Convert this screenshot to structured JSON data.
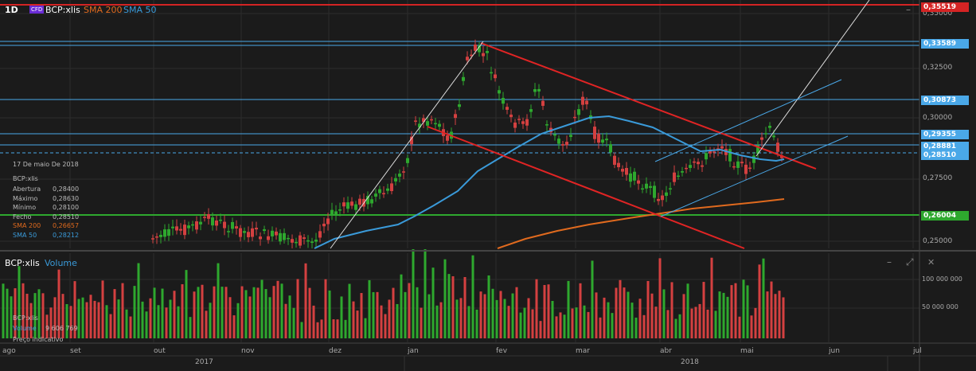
{
  "header": {
    "timeframe": "1D",
    "cfd_badge": "CFD",
    "symbol": "BCP:xlis",
    "sma200_label": "SMA 200",
    "sma50_label": "SMA 50",
    "close_symbol": "–",
    "colors": {
      "sma200": "#e06a1e",
      "sma50": "#3a9ad9",
      "cfd_bg": "#6a2cd6"
    }
  },
  "info_box": {
    "date": "17 De maio De 2018",
    "symbol": "BCP:xlis",
    "rows": [
      {
        "label": "Abertura",
        "value": "0,28400"
      },
      {
        "label": "Máximo",
        "value": "0,28630"
      },
      {
        "label": "Mínimo",
        "value": "0,28100"
      },
      {
        "label": "Fecho",
        "value": "0,28510"
      },
      {
        "label": "SMA 200",
        "value": "0,26657"
      },
      {
        "label": "SMA 50",
        "value": "0,28212"
      }
    ]
  },
  "price_axis": {
    "ticks": [
      "0,35000",
      "0,32500",
      "0,30000",
      "0,27500",
      "0,25000"
    ],
    "tags": [
      {
        "text": "0,35519",
        "bg": "#d42424",
        "fg": "#ffffff"
      },
      {
        "text": "0,33589",
        "bg": "#4aa8e8",
        "fg": "#ffffff"
      },
      {
        "text": "0,30873",
        "bg": "#4aa8e8",
        "fg": "#ffffff"
      },
      {
        "text": "0,29355",
        "bg": "#4aa8e8",
        "fg": "#ffffff"
      },
      {
        "text": "0,28881",
        "bg": "#4aa8e8",
        "fg": "#ffffff"
      },
      {
        "text": "0,28510",
        "bg": "#4aa8e8",
        "fg": "#ffffff"
      },
      {
        "text": "0,26004",
        "bg": "#2ea82e",
        "fg": "#ffffff"
      }
    ]
  },
  "volume_panel": {
    "symbol": "BCP:xlis",
    "title": "Volume",
    "ticks": [
      "100 000 000",
      "50 000 000"
    ],
    "info_symbol": "BCP:xlis",
    "info_label": "Volume",
    "info_value": "9 606 769",
    "note": "Preço indicativo",
    "minimize": "–",
    "expand": "⤢",
    "close": "✕"
  },
  "time_axis": {
    "months": [
      "ago",
      "set",
      "out",
      "nov",
      "dez",
      "jan",
      "fev",
      "mar",
      "abr",
      "mai",
      "jun",
      "jul"
    ],
    "years": [
      "2017",
      "2018"
    ]
  }
}
